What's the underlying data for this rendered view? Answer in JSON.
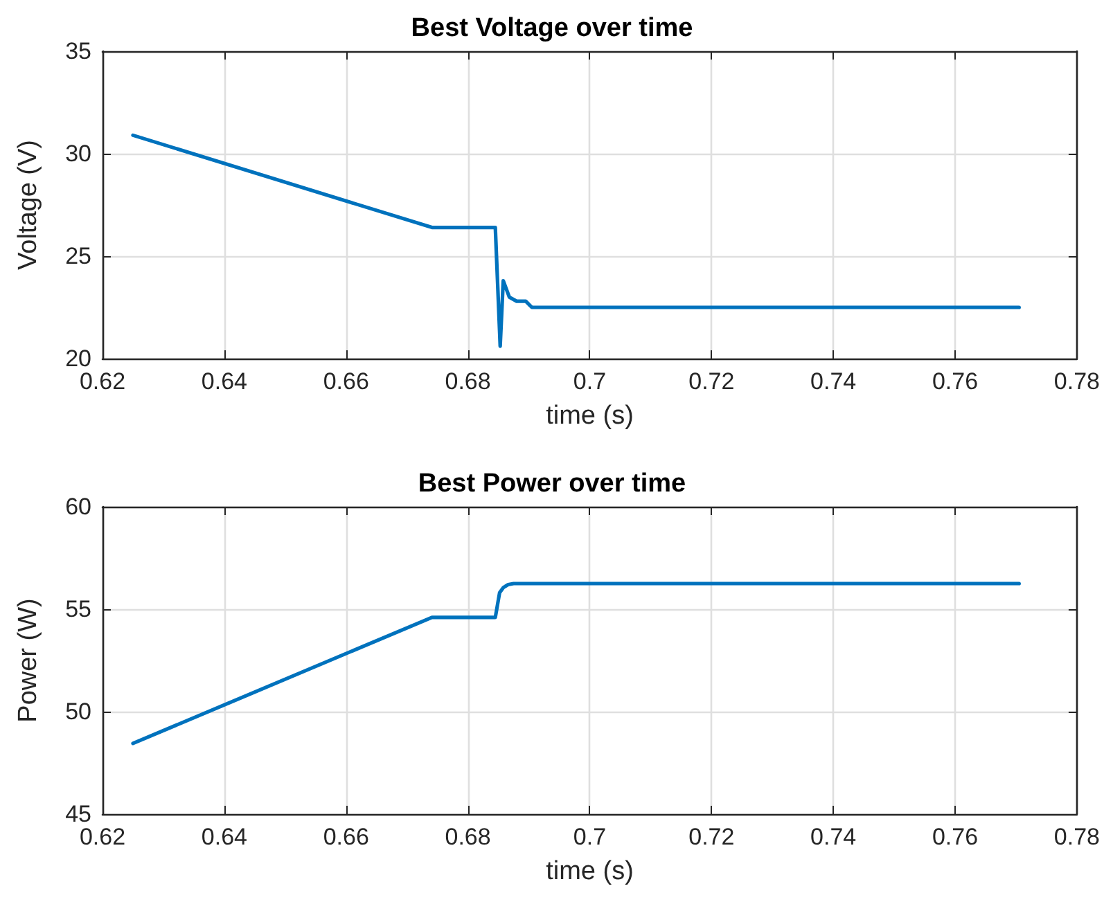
{
  "chart_data": [
    {
      "type": "line",
      "title": "Best Voltage over time",
      "xlabel": "time (s)",
      "ylabel": "Voltage (V)",
      "xlim": [
        0.62,
        0.78
      ],
      "xticks": [
        0.62,
        0.64,
        0.66,
        0.68,
        {
          "value": 0.7,
          "label": "0.7"
        },
        0.72,
        0.74,
        0.76,
        0.78
      ],
      "ylim": [
        20,
        35
      ],
      "yticks": [
        20,
        25,
        30,
        35
      ],
      "grid": true,
      "series": [
        {
          "color": "#0072bd",
          "x": [
            0.625,
            0.6741,
            0.6845,
            0.6853,
            0.6858,
            0.6868,
            0.688,
            0.6895,
            0.6905,
            0.7705
          ],
          "values": [
            30.9,
            26.4,
            26.4,
            20.6,
            23.8,
            23.0,
            22.8,
            22.8,
            22.5,
            22.5
          ]
        }
      ]
    },
    {
      "type": "line",
      "title": "Best Power over time",
      "xlabel": "time (s)",
      "ylabel": "Power (W)",
      "xlim": [
        0.62,
        0.78
      ],
      "xticks": [
        0.62,
        0.64,
        0.66,
        0.68,
        {
          "value": 0.7,
          "label": "0.7"
        },
        0.72,
        0.74,
        0.76,
        0.78
      ],
      "ylim": [
        45,
        60
      ],
      "yticks": [
        45,
        50,
        55,
        60
      ],
      "grid": true,
      "series": [
        {
          "color": "#0072bd",
          "x": [
            0.625,
            0.6741,
            0.6845,
            0.6852,
            0.6858,
            0.6866,
            0.6875,
            0.7705
          ],
          "values": [
            48.45,
            54.6,
            54.6,
            55.8,
            56.05,
            56.2,
            56.25,
            56.25
          ]
        }
      ]
    }
  ]
}
